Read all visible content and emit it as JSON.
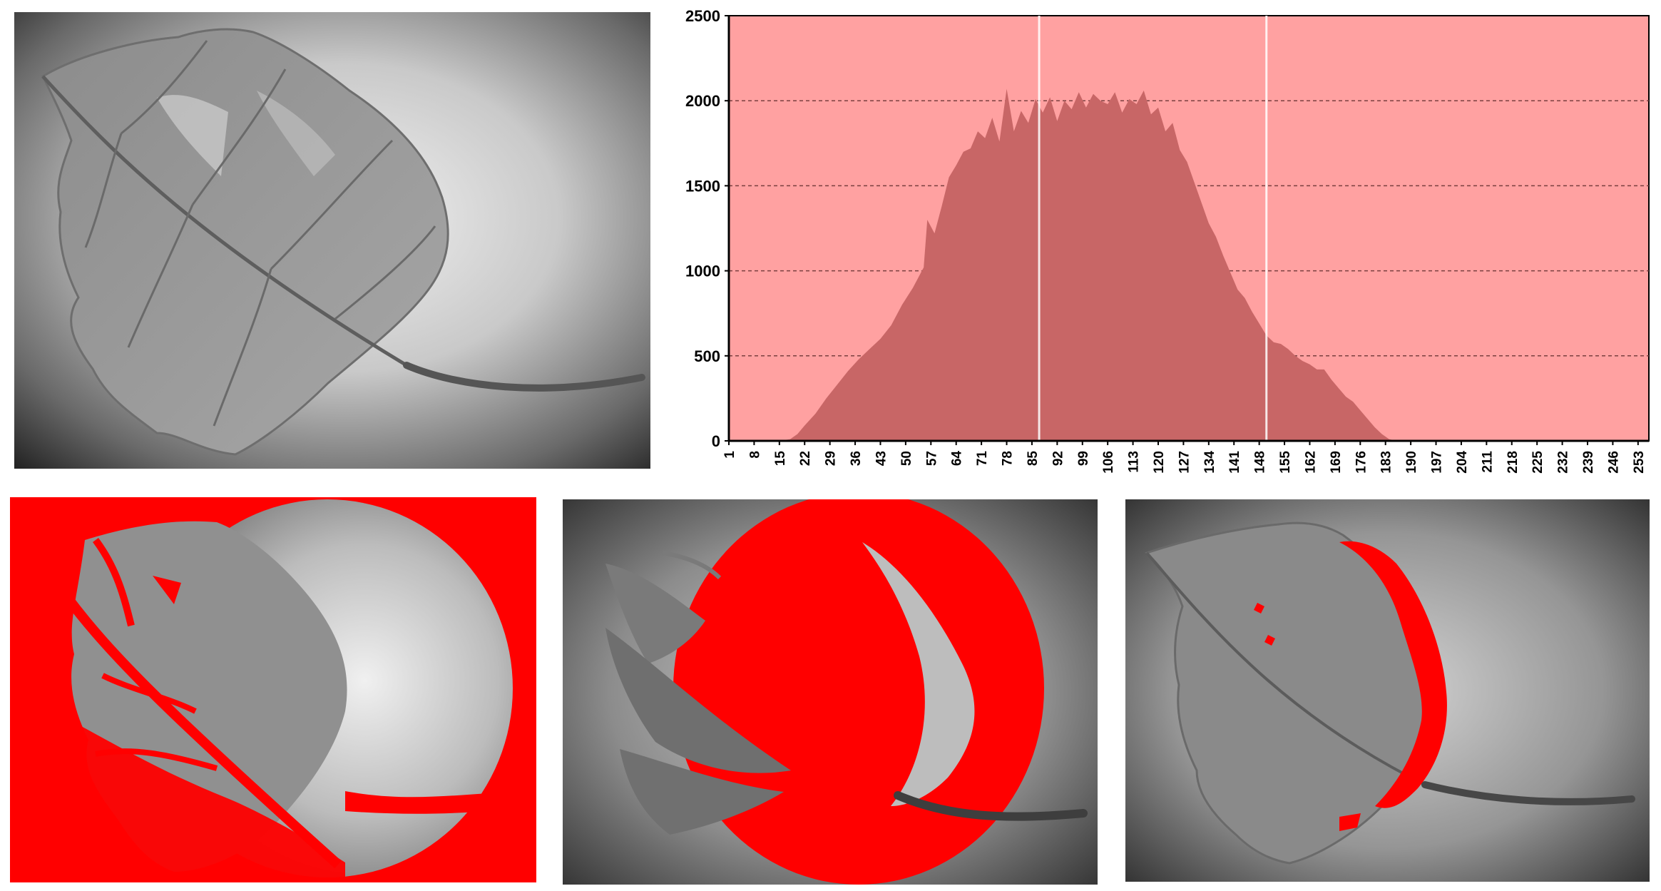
{
  "figure": {
    "panels": [
      {
        "id": "original",
        "description_name": "grayscale leaf photograph"
      },
      {
        "id": "histogram"
      },
      {
        "id": "segmentation-low"
      },
      {
        "id": "segmentation-mid"
      },
      {
        "id": "segmentation-high"
      }
    ],
    "colors": {
      "overlay_red": "#ff0000",
      "plot_background": "#ffa1a1",
      "histogram_fill": "#c86666",
      "threshold_line": "#ffffff",
      "gridline": "#7a4040"
    }
  },
  "chart_data": {
    "type": "area",
    "title": "",
    "xlabel": "",
    "ylabel": "",
    "ylim": [
      0,
      2500
    ],
    "yticks": [
      0,
      500,
      1000,
      1500,
      2000,
      2500
    ],
    "xlim": [
      1,
      256
    ],
    "xtick_labels": [
      "1",
      "8",
      "15",
      "22",
      "29",
      "36",
      "43",
      "50",
      "57",
      "64",
      "71",
      "78",
      "85",
      "92",
      "99",
      "106",
      "113",
      "120",
      "127",
      "134",
      "141",
      "148",
      "155",
      "162",
      "169",
      "176",
      "183",
      "190",
      "197",
      "204",
      "211",
      "218",
      "225",
      "232",
      "239",
      "246",
      "253"
    ],
    "grid": "horizontal dashed",
    "legend": "none",
    "thresholds": [
      87,
      150
    ],
    "series": [
      {
        "x": [
          1,
          15,
          18,
          20,
          22,
          25,
          28,
          31,
          34,
          37,
          40,
          43,
          46,
          49,
          52,
          55,
          56,
          58,
          60,
          62,
          64,
          66,
          68,
          70,
          72,
          74,
          76,
          78,
          80,
          82,
          84,
          86,
          88,
          90,
          92,
          94,
          96,
          98,
          100,
          102,
          104,
          106,
          108,
          110,
          112,
          114,
          116,
          118,
          120,
          122,
          124,
          126,
          128,
          130,
          132,
          134,
          136,
          138,
          140,
          142,
          144,
          146,
          148,
          150,
          152,
          154,
          156,
          158,
          160,
          162,
          164,
          166,
          168,
          170,
          172,
          174,
          176,
          178,
          180,
          182,
          184,
          186,
          188,
          256
        ],
        "y": [
          0,
          0,
          10,
          40,
          90,
          160,
          250,
          330,
          410,
          480,
          540,
          600,
          680,
          800,
          900,
          1020,
          1300,
          1220,
          1380,
          1550,
          1620,
          1700,
          1720,
          1820,
          1780,
          1900,
          1760,
          2070,
          1820,
          1940,
          1870,
          2010,
          1930,
          2020,
          1880,
          2000,
          1950,
          2050,
          1960,
          2040,
          2000,
          1980,
          2050,
          1930,
          2010,
          1980,
          2060,
          1920,
          1960,
          1820,
          1870,
          1710,
          1640,
          1520,
          1400,
          1280,
          1200,
          1090,
          990,
          890,
          840,
          760,
          690,
          620,
          580,
          570,
          540,
          500,
          470,
          450,
          420,
          420,
          360,
          310,
          260,
          230,
          180,
          130,
          80,
          40,
          10,
          0,
          0,
          0
        ]
      }
    ]
  }
}
